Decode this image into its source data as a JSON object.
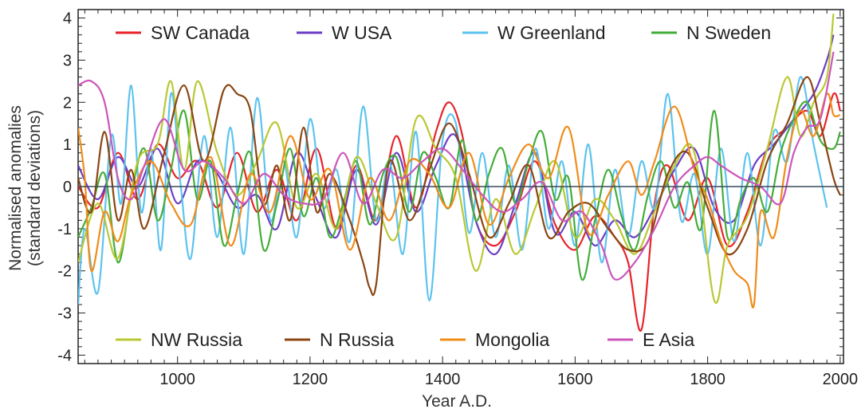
{
  "chart_data": {
    "type": "line",
    "title": "",
    "xlabel": "Year A.D.",
    "ylabel": [
      "Normalised anomalies",
      "(standard deviations)"
    ],
    "xlim": [
      850,
      2005
    ],
    "ylim": [
      -4.2,
      4.2
    ],
    "x_ticks": [
      1000,
      1200,
      1400,
      1600,
      1800,
      2000
    ],
    "y_ticks": [
      -4,
      -3,
      -2,
      -1,
      0,
      1,
      2,
      3,
      4
    ],
    "zero_line": true,
    "grid": false,
    "legend": {
      "top": [
        0,
        1,
        2,
        3
      ],
      "bottom": [
        4,
        5,
        6,
        7
      ]
    },
    "series": [
      {
        "name": "SW Canada",
        "color": "#e8232a",
        "x": [
          850,
          880,
          910,
          940,
          970,
          1000,
          1030,
          1060,
          1090,
          1120,
          1150,
          1180,
          1210,
          1240,
          1270,
          1300,
          1330,
          1360,
          1390,
          1410,
          1430,
          1450,
          1480,
          1510,
          1540,
          1570,
          1600,
          1630,
          1660,
          1680,
          1700,
          1720,
          1740,
          1770,
          1800,
          1830,
          1860,
          1890,
          1920,
          1950,
          1970,
          1990,
          2000
        ],
        "y": [
          0.0,
          -0.5,
          0.8,
          -0.3,
          1.0,
          0.2,
          0.6,
          -0.5,
          0.8,
          -0.6,
          0.4,
          -0.8,
          0.9,
          -1.0,
          0.5,
          -0.8,
          1.2,
          -0.5,
          1.3,
          2.0,
          1.2,
          -0.8,
          -1.4,
          -0.6,
          0.6,
          -0.9,
          -1.5,
          -0.7,
          -1.2,
          -1.8,
          -3.4,
          -0.4,
          0.5,
          -0.8,
          0.2,
          -1.4,
          -0.6,
          0.9,
          1.4,
          1.8,
          1.2,
          2.2,
          1.8
        ]
      },
      {
        "name": "W USA",
        "color": "#6c3fc4",
        "x": [
          850,
          880,
          910,
          940,
          970,
          1000,
          1030,
          1060,
          1090,
          1120,
          1150,
          1180,
          1210,
          1240,
          1270,
          1300,
          1330,
          1360,
          1390,
          1420,
          1450,
          1480,
          1510,
          1540,
          1570,
          1600,
          1630,
          1660,
          1690,
          1720,
          1750,
          1780,
          1810,
          1840,
          1870,
          1900,
          1930,
          1960,
          1980,
          1990
        ],
        "y": [
          0.5,
          -0.3,
          0.7,
          0.0,
          0.9,
          -0.4,
          0.6,
          0.3,
          -0.5,
          -0.2,
          -1.0,
          0.8,
          -0.3,
          -1.2,
          0.4,
          -0.9,
          0.8,
          -0.6,
          0.5,
          1.2,
          -0.8,
          -1.6,
          -0.4,
          0.8,
          -1.1,
          -0.6,
          -1.4,
          -0.8,
          -1.2,
          -0.5,
          0.4,
          0.9,
          -0.5,
          -0.8,
          0.5,
          1.0,
          1.6,
          2.2,
          3.0,
          3.6
        ]
      },
      {
        "name": "W Greenland",
        "color": "#5ec3ee",
        "x": [
          850,
          860,
          880,
          900,
          915,
          930,
          945,
          960,
          975,
          990,
          1005,
          1020,
          1040,
          1060,
          1080,
          1100,
          1120,
          1140,
          1160,
          1180,
          1200,
          1220,
          1240,
          1260,
          1280,
          1300,
          1320,
          1340,
          1360,
          1380,
          1400,
          1420,
          1440,
          1460,
          1480,
          1500,
          1520,
          1540,
          1560,
          1580,
          1600,
          1620,
          1640,
          1660,
          1680,
          1700,
          1720,
          1740,
          1760,
          1780,
          1800,
          1820,
          1840,
          1860,
          1880,
          1900,
          1920,
          1940,
          1960,
          1980
        ],
        "y": [
          -2.8,
          -1.0,
          -2.5,
          1.2,
          -0.4,
          2.4,
          -0.6,
          0.9,
          -1.5,
          2.2,
          0.0,
          -1.7,
          1.2,
          -1.2,
          1.4,
          -1.6,
          2.1,
          -0.8,
          0.6,
          -1.2,
          1.6,
          -0.5,
          0.4,
          -1.3,
          1.9,
          -0.8,
          0.6,
          -1.6,
          1.3,
          -2.7,
          1.1,
          1.5,
          -1.1,
          0.8,
          -1.2,
          0.5,
          -1.5,
          0.9,
          -1.0,
          0.6,
          -1.4,
          1.0,
          -1.8,
          0.4,
          -1.2,
          0.6,
          -0.5,
          2.2,
          -0.8,
          0.3,
          -1.6,
          0.9,
          -1.3,
          0.8,
          -1.4,
          1.3,
          0.6,
          2.6,
          1.0,
          -0.5
        ]
      },
      {
        "name": "N Sweden",
        "color": "#45ad3a",
        "x": [
          850,
          870,
          890,
          910,
          930,
          950,
          970,
          990,
          1010,
          1030,
          1050,
          1070,
          1090,
          1110,
          1130,
          1150,
          1170,
          1190,
          1210,
          1230,
          1250,
          1270,
          1290,
          1310,
          1330,
          1350,
          1370,
          1390,
          1410,
          1430,
          1450,
          1470,
          1490,
          1510,
          1530,
          1550,
          1570,
          1590,
          1610,
          1630,
          1650,
          1670,
          1690,
          1710,
          1730,
          1750,
          1770,
          1790,
          1810,
          1830,
          1850,
          1870,
          1890,
          1910,
          1930,
          1950,
          1970,
          1990,
          2000
        ],
        "y": [
          -1.2,
          -0.5,
          0.3,
          -1.8,
          -0.2,
          0.9,
          -0.8,
          0.4,
          1.8,
          -0.3,
          0.6,
          -1.4,
          -0.2,
          0.8,
          -1.5,
          -0.4,
          0.9,
          -0.7,
          0.2,
          -1.2,
          -0.4,
          0.6,
          -0.9,
          0.3,
          0.7,
          -0.6,
          0.8,
          0.2,
          -0.5,
          1.1,
          -0.8,
          0.3,
          0.9,
          -0.4,
          0.6,
          1.3,
          -0.3,
          0.2,
          -2.2,
          -0.8,
          0.4,
          -0.7,
          -1.5,
          -0.2,
          0.6,
          -0.5,
          0.1,
          -1.0,
          1.8,
          -1.2,
          -0.3,
          0.2,
          -0.6,
          0.8,
          1.6,
          2.0,
          1.1,
          0.9,
          1.3
        ]
      },
      {
        "name": "NW Russia",
        "color": "#b9c832",
        "x": [
          850,
          880,
          910,
          940,
          970,
          990,
          1010,
          1030,
          1060,
          1090,
          1120,
          1150,
          1180,
          1210,
          1240,
          1270,
          1300,
          1330,
          1360,
          1390,
          1420,
          1450,
          1480,
          1510,
          1540,
          1570,
          1600,
          1630,
          1660,
          1690,
          1720,
          1750,
          1780,
          1810,
          1830,
          1860,
          1890,
          1920,
          1940,
          1960,
          1980,
          1990
        ],
        "y": [
          -1.8,
          -0.4,
          -1.7,
          0.6,
          1.0,
          2.5,
          0.4,
          2.5,
          0.8,
          -0.2,
          0.6,
          1.5,
          -0.5,
          0.3,
          -1.0,
          0.7,
          -0.4,
          -1.2,
          1.6,
          0.9,
          0.2,
          -2.0,
          -0.3,
          -1.6,
          -0.5,
          0.6,
          -1.2,
          -0.3,
          -0.8,
          -1.6,
          -0.6,
          0.5,
          0.8,
          -2.7,
          -1.4,
          -0.7,
          0.9,
          2.6,
          1.2,
          2.0,
          2.6,
          4.1
        ]
      },
      {
        "name": "N Russia",
        "color": "#8b4513",
        "x": [
          850,
          870,
          890,
          910,
          930,
          950,
          980,
          1010,
          1040,
          1070,
          1090,
          1110,
          1130,
          1150,
          1170,
          1190,
          1210,
          1230,
          1260,
          1280,
          1290,
          1300,
          1320,
          1350,
          1380,
          1410,
          1440,
          1470,
          1500,
          1530,
          1560,
          1590,
          1620,
          1650,
          1680,
          1710,
          1740,
          1770,
          1800,
          1830,
          1860,
          1890,
          1920,
          1950,
          1970,
          1990,
          2000
        ],
        "y": [
          0.2,
          -0.6,
          1.3,
          -0.8,
          0.4,
          -1.0,
          0.8,
          2.4,
          0.6,
          2.3,
          2.2,
          1.8,
          -0.4,
          0.5,
          -0.8,
          1.4,
          -0.6,
          0.3,
          -0.8,
          -1.8,
          -2.4,
          -2.3,
          0.6,
          -0.8,
          0.4,
          1.5,
          0.3,
          -1.2,
          -0.4,
          0.5,
          -1.2,
          -0.6,
          -0.4,
          -1.0,
          -1.5,
          -1.3,
          0.3,
          0.8,
          -0.5,
          -1.6,
          -1.0,
          0.6,
          1.5,
          2.6,
          1.5,
          0.2,
          -0.2
        ]
      },
      {
        "name": "Mongolia",
        "color": "#f08c1a",
        "x": [
          850,
          860,
          870,
          890,
          910,
          930,
          960,
          990,
          1020,
          1050,
          1080,
          1110,
          1140,
          1170,
          1200,
          1230,
          1260,
          1290,
          1320,
          1350,
          1380,
          1410,
          1440,
          1470,
          1500,
          1530,
          1560,
          1590,
          1620,
          1650,
          1680,
          1700,
          1720,
          1750,
          1780,
          1800,
          1820,
          1840,
          1860,
          1870,
          1880,
          1900,
          1920,
          1940,
          1960,
          1980,
          1990,
          2000
        ],
        "y": [
          1.4,
          0.2,
          -2.0,
          -0.6,
          -1.3,
          -0.2,
          0.6,
          -0.4,
          -0.9,
          0.7,
          -1.4,
          0.3,
          -0.6,
          1.2,
          -0.3,
          0.4,
          -1.5,
          0.2,
          -0.8,
          0.6,
          0.3,
          -0.5,
          0.8,
          -0.9,
          0.2,
          1.0,
          0.2,
          1.4,
          -1.1,
          -0.2,
          0.6,
          -0.2,
          0.6,
          1.9,
          0.4,
          -0.3,
          -1.3,
          -2.0,
          -2.3,
          -2.8,
          -0.6,
          -1.2,
          0.7,
          1.8,
          1.2,
          2.2,
          1.7,
          1.7
        ]
      },
      {
        "name": "E Asia",
        "color": "#cc55bb",
        "x": [
          850,
          870,
          890,
          910,
          930,
          950,
          980,
          1010,
          1040,
          1070,
          1100,
          1130,
          1160,
          1190,
          1220,
          1250,
          1280,
          1310,
          1340,
          1370,
          1400,
          1430,
          1460,
          1490,
          1520,
          1550,
          1580,
          1610,
          1640,
          1660,
          1690,
          1720,
          1750,
          1780,
          1800,
          1820,
          1850,
          1880,
          1910,
          1930,
          1950,
          1970,
          1990
        ],
        "y": [
          2.4,
          2.5,
          2.0,
          0.2,
          -0.3,
          0.5,
          1.6,
          0.4,
          0.6,
          0.2,
          -0.4,
          0.3,
          -0.2,
          -0.4,
          -0.3,
          0.8,
          -0.4,
          0.4,
          0.2,
          0.6,
          0.9,
          0.4,
          -0.2,
          -0.6,
          -0.3,
          0.1,
          -0.8,
          -0.6,
          -1.4,
          -2.2,
          -1.8,
          -1.0,
          0.0,
          0.5,
          0.7,
          0.5,
          0.2,
          0.0,
          -0.4,
          0.8,
          1.4,
          1.6,
          3.2
        ]
      }
    ]
  }
}
